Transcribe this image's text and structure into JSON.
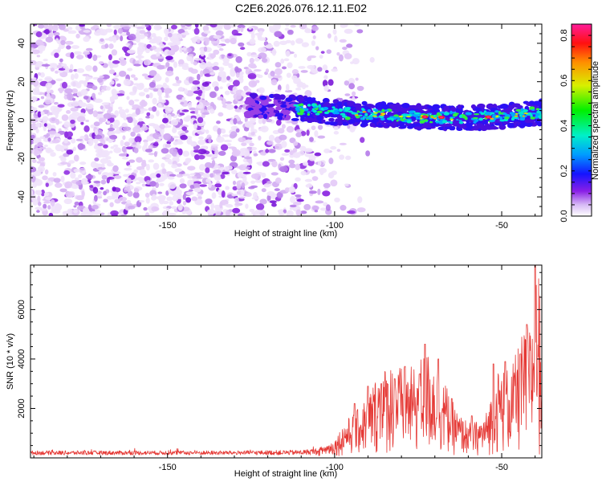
{
  "title": "C2E6.2026.076.12.11.E02",
  "chart_data": [
    {
      "type": "heatmap",
      "name": "spectrogram",
      "xlabel": "Height of straight line (km)",
      "ylabel": "Frequency (Hz)",
      "xlim": [
        -191,
        -38
      ],
      "ylim": [
        -50,
        50
      ],
      "x_ticks": [
        -150,
        -100,
        -50
      ],
      "y_ticks": [
        -40,
        -20,
        0,
        20,
        40
      ],
      "noise_region_x": [
        -191,
        -100
      ],
      "signal_band": {
        "x_start": -126,
        "x_end": -38,
        "center_freq_points": [
          [
            -126,
            8
          ],
          [
            -110,
            6
          ],
          [
            -100,
            4
          ],
          [
            -80,
            2
          ],
          [
            -60,
            1
          ],
          [
            -50,
            2
          ],
          [
            -38,
            4
          ]
        ],
        "half_width_hz": 5,
        "peak_x": [
          -73,
          -68,
          -54
        ]
      },
      "colorbar": {
        "label": "Normalized spectral amplitude",
        "range": [
          0.0,
          0.85
        ],
        "ticks": [
          0.0,
          0.2,
          0.4,
          0.6,
          0.8
        ]
      }
    },
    {
      "type": "line",
      "name": "snr",
      "xlabel": "Height of straight line (km)",
      "ylabel": "SNR (10 * v/v)",
      "xlim": [
        -191,
        -38
      ],
      "ylim": [
        0,
        7800
      ],
      "x_ticks": [
        -150,
        -100,
        -50
      ],
      "y_ticks": [
        2000,
        4000,
        6000
      ],
      "color": "#e53935",
      "envelope": [
        {
          "x": -191,
          "y": 250
        },
        {
          "x": -130,
          "y": 250
        },
        {
          "x": -110,
          "y": 280
        },
        {
          "x": -104,
          "y": 380
        },
        {
          "x": -100,
          "y": 650
        },
        {
          "x": -97,
          "y": 1400
        },
        {
          "x": -93,
          "y": 1900
        },
        {
          "x": -90,
          "y": 2500
        },
        {
          "x": -87,
          "y": 3400
        },
        {
          "x": -83,
          "y": 3800
        },
        {
          "x": -80,
          "y": 3600
        },
        {
          "x": -76,
          "y": 3600
        },
        {
          "x": -73,
          "y": 4300
        },
        {
          "x": -70,
          "y": 3900
        },
        {
          "x": -67,
          "y": 3000
        },
        {
          "x": -63,
          "y": 1700
        },
        {
          "x": -59,
          "y": 1300
        },
        {
          "x": -55,
          "y": 1600
        },
        {
          "x": -51,
          "y": 3500
        },
        {
          "x": -47,
          "y": 3600
        },
        {
          "x": -44,
          "y": 4900
        },
        {
          "x": -41,
          "y": 5400
        },
        {
          "x": -39.5,
          "y": 7600
        },
        {
          "x": -38,
          "y": 7000
        }
      ],
      "spikes": [
        {
          "x": -94,
          "y": 2200
        },
        {
          "x": -90,
          "y": 2900
        },
        {
          "x": -86,
          "y": 3000
        },
        {
          "x": -82,
          "y": 3200
        },
        {
          "x": -79,
          "y": 3700
        },
        {
          "x": -74.5,
          "y": 3400
        },
        {
          "x": -73,
          "y": 4600
        },
        {
          "x": -69,
          "y": 4000
        },
        {
          "x": -65,
          "y": 2400
        },
        {
          "x": -59,
          "y": 1700
        },
        {
          "x": -52.5,
          "y": 3800
        },
        {
          "x": -49,
          "y": 3900
        },
        {
          "x": -44.5,
          "y": 4200
        },
        {
          "x": -42.5,
          "y": 5400
        },
        {
          "x": -40,
          "y": 7800
        }
      ]
    }
  ]
}
